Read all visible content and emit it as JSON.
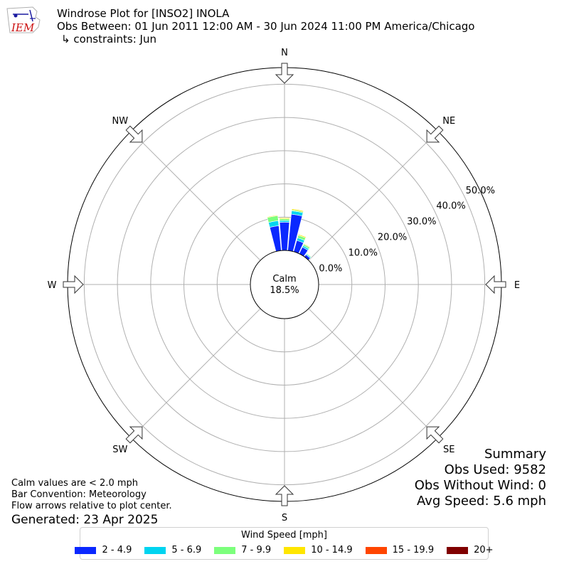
{
  "header": {
    "title": "Windrose Plot for [INSO2] INOLA",
    "obs_between": "Obs Between: 01 Jun 2011 12:00 AM - 30 Jun 2024 11:00 PM America/Chicago",
    "constraints": "↳ constraints: Jun"
  },
  "logo": {
    "text": "IEM"
  },
  "chart_data": {
    "type": "windrose",
    "directions": [
      "N",
      "NE",
      "E",
      "SE",
      "S",
      "SW",
      "W",
      "NW"
    ],
    "radial_ticks": [
      "0.0%",
      "10.0%",
      "20.0%",
      "30.0%",
      "40.0%",
      "50.0%"
    ],
    "radial_max": 55,
    "calm": {
      "label": "Calm",
      "value": "18.5%"
    },
    "bin_colors": [
      "#0a28ff",
      "#00d4f0",
      "#7cff7c",
      "#ffe600",
      "#ff4500",
      "#800000"
    ],
    "bins": [
      "2 - 4.9",
      "5 - 6.9",
      "7 - 9.9",
      "10 - 14.9",
      "15 - 19.9",
      "20+"
    ],
    "sectors": [
      {
        "dir_deg": 0,
        "values": [
          8.5,
          0.5,
          0.5,
          0.3,
          0,
          0
        ]
      },
      {
        "dir_deg": 10,
        "values": [
          11.0,
          1.0,
          0.3,
          0.3,
          0,
          0
        ]
      },
      {
        "dir_deg": 20,
        "values": [
          3.5,
          0.8,
          0.8,
          0.3,
          0,
          0
        ]
      },
      {
        "dir_deg": 30,
        "values": [
          2.2,
          0.5,
          0.5,
          0.2,
          0,
          0
        ]
      },
      {
        "dir_deg": 40,
        "values": [
          0.8,
          0.3,
          0.2,
          0,
          0,
          0
        ]
      },
      {
        "dir_deg": 350,
        "values": [
          7.5,
          1.5,
          1.5,
          0.2,
          0,
          0
        ]
      }
    ],
    "sector_width_deg": 9,
    "grid": true
  },
  "legend": {
    "title": "Wind Speed [mph]"
  },
  "summary": {
    "title": "Summary",
    "obs_used": "Obs Used: 9582",
    "obs_without_wind": "Obs Without Wind: 0",
    "avg_speed": "Avg Speed: 5.6 mph"
  },
  "notes": {
    "calm": "Calm values are < 2.0 mph",
    "bar_convention": "Bar Convention: Meteorology",
    "flow_arrows": "Flow arrows relative to plot center.",
    "generated": "Generated: 23 Apr 2025"
  }
}
